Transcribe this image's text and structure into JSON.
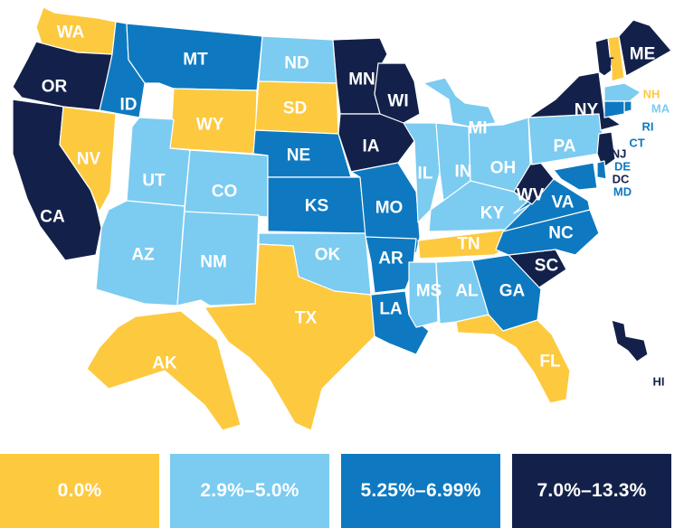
{
  "colors": {
    "0": "#FDC93F",
    "1": "#7CCBF1",
    "2": "#0E79C0",
    "3": "#13214A"
  },
  "label_colors": {
    "0": "#ffffff",
    "1": "#ffffff",
    "2": "#ffffff",
    "3": "#ffffff"
  },
  "legend": [
    {
      "label": "0.0%",
      "class": 0
    },
    {
      "label": "2.9%–5.0%",
      "class": 1
    },
    {
      "label": "5.25%–6.99%",
      "class": 2
    },
    {
      "label": "7.0%–13.3%",
      "class": 3
    }
  ],
  "states": [
    {
      "code": "WA",
      "class": 0
    },
    {
      "code": "OR",
      "class": 3
    },
    {
      "code": "CA",
      "class": 3
    },
    {
      "code": "NV",
      "class": 0
    },
    {
      "code": "ID",
      "class": 2
    },
    {
      "code": "MT",
      "class": 2
    },
    {
      "code": "WY",
      "class": 0
    },
    {
      "code": "UT",
      "class": 1
    },
    {
      "code": "AZ",
      "class": 1
    },
    {
      "code": "CO",
      "class": 1
    },
    {
      "code": "NM",
      "class": 1
    },
    {
      "code": "ND",
      "class": 1
    },
    {
      "code": "SD",
      "class": 0
    },
    {
      "code": "NE",
      "class": 2
    },
    {
      "code": "KS",
      "class": 2
    },
    {
      "code": "OK",
      "class": 1
    },
    {
      "code": "TX",
      "class": 0
    },
    {
      "code": "MN",
      "class": 3
    },
    {
      "code": "IA",
      "class": 3
    },
    {
      "code": "MO",
      "class": 2
    },
    {
      "code": "AR",
      "class": 2
    },
    {
      "code": "LA",
      "class": 2
    },
    {
      "code": "WI",
      "class": 3
    },
    {
      "code": "IL",
      "class": 1
    },
    {
      "code": "MI",
      "class": 1
    },
    {
      "code": "IN",
      "class": 1
    },
    {
      "code": "OH",
      "class": 1
    },
    {
      "code": "KY",
      "class": 1
    },
    {
      "code": "TN",
      "class": 0
    },
    {
      "code": "MS",
      "class": 1
    },
    {
      "code": "AL",
      "class": 1
    },
    {
      "code": "GA",
      "class": 2
    },
    {
      "code": "FL",
      "class": 0
    },
    {
      "code": "SC",
      "class": 3
    },
    {
      "code": "NC",
      "class": 2
    },
    {
      "code": "VA",
      "class": 2
    },
    {
      "code": "WV",
      "class": 3
    },
    {
      "code": "PA",
      "class": 1
    },
    {
      "code": "NY",
      "class": 3
    },
    {
      "code": "VT",
      "class": 3
    },
    {
      "code": "NH",
      "class": 0
    },
    {
      "code": "ME",
      "class": 3
    },
    {
      "code": "MA",
      "class": 1
    },
    {
      "code": "RI",
      "class": 2
    },
    {
      "code": "CT",
      "class": 2
    },
    {
      "code": "NJ",
      "class": 3
    },
    {
      "code": "DE",
      "class": 2
    },
    {
      "code": "MD",
      "class": 2
    },
    {
      "code": "DC",
      "class": 3
    },
    {
      "code": "AK",
      "class": 0
    },
    {
      "code": "HI",
      "class": 3
    }
  ]
}
